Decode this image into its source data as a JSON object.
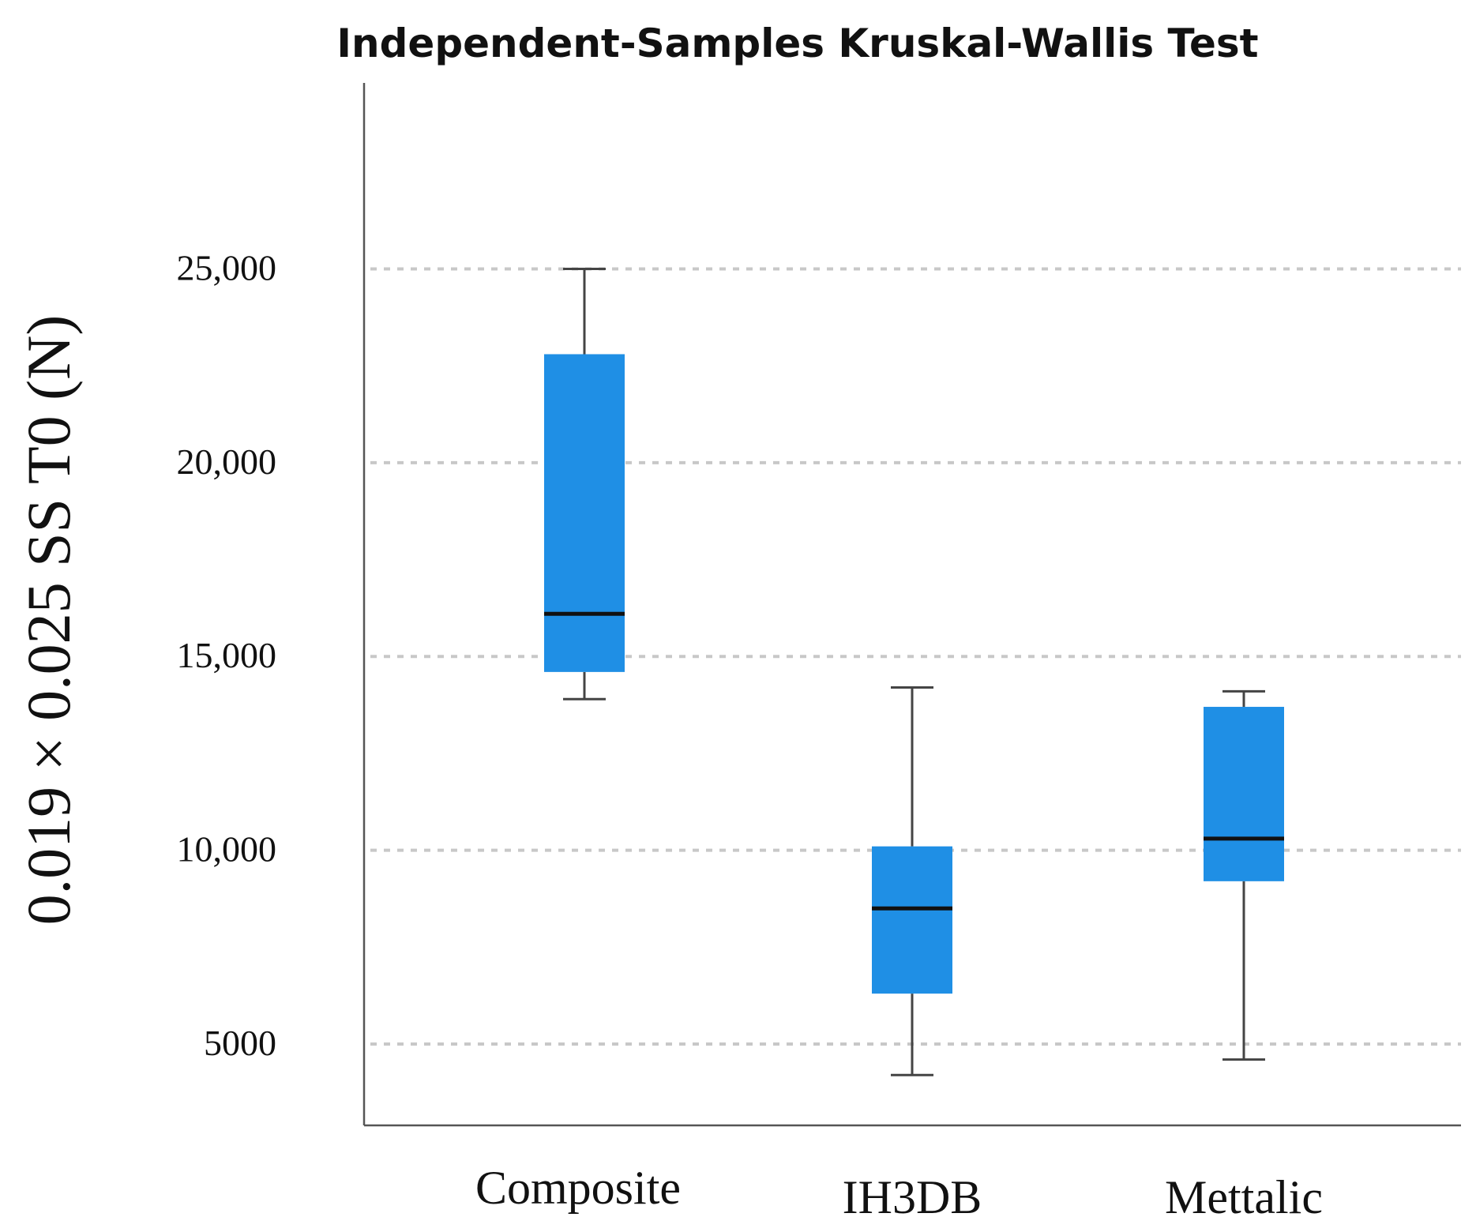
{
  "chart_data": {
    "type": "boxplot",
    "title": "Independent-Samples Kruskal-Wallis Test",
    "ylabel": "0.019 × 0.025 SS T0 (N)",
    "xlabel": "",
    "ylim": [
      2900,
      29800
    ],
    "yticks": [
      {
        "value": 5000,
        "label": "5000"
      },
      {
        "value": 10000,
        "label": "10,000"
      },
      {
        "value": 15000,
        "label": "15,000"
      },
      {
        "value": 20000,
        "label": "20,000"
      },
      {
        "value": 25000,
        "label": "25,000"
      }
    ],
    "grid": true,
    "categories": [
      "Composite",
      "IH3DB",
      "Mettalic"
    ],
    "boxes": [
      {
        "category": "Composite",
        "min": 13900,
        "q1": 14600,
        "median": 16100,
        "q3": 22800,
        "max": 25000
      },
      {
        "category": "IH3DB",
        "min": 4200,
        "q1": 6300,
        "median": 8500,
        "q3": 10100,
        "max": 14200
      },
      {
        "category": "Mettalic",
        "min": 4600,
        "q1": 9200,
        "median": 10300,
        "q3": 13700,
        "max": 14100
      }
    ],
    "colors": {
      "box_fill": "#1f8fe5",
      "median": "#111111",
      "whisker": "#444444",
      "grid": "#c8c8c8",
      "axis": "#555555"
    }
  }
}
